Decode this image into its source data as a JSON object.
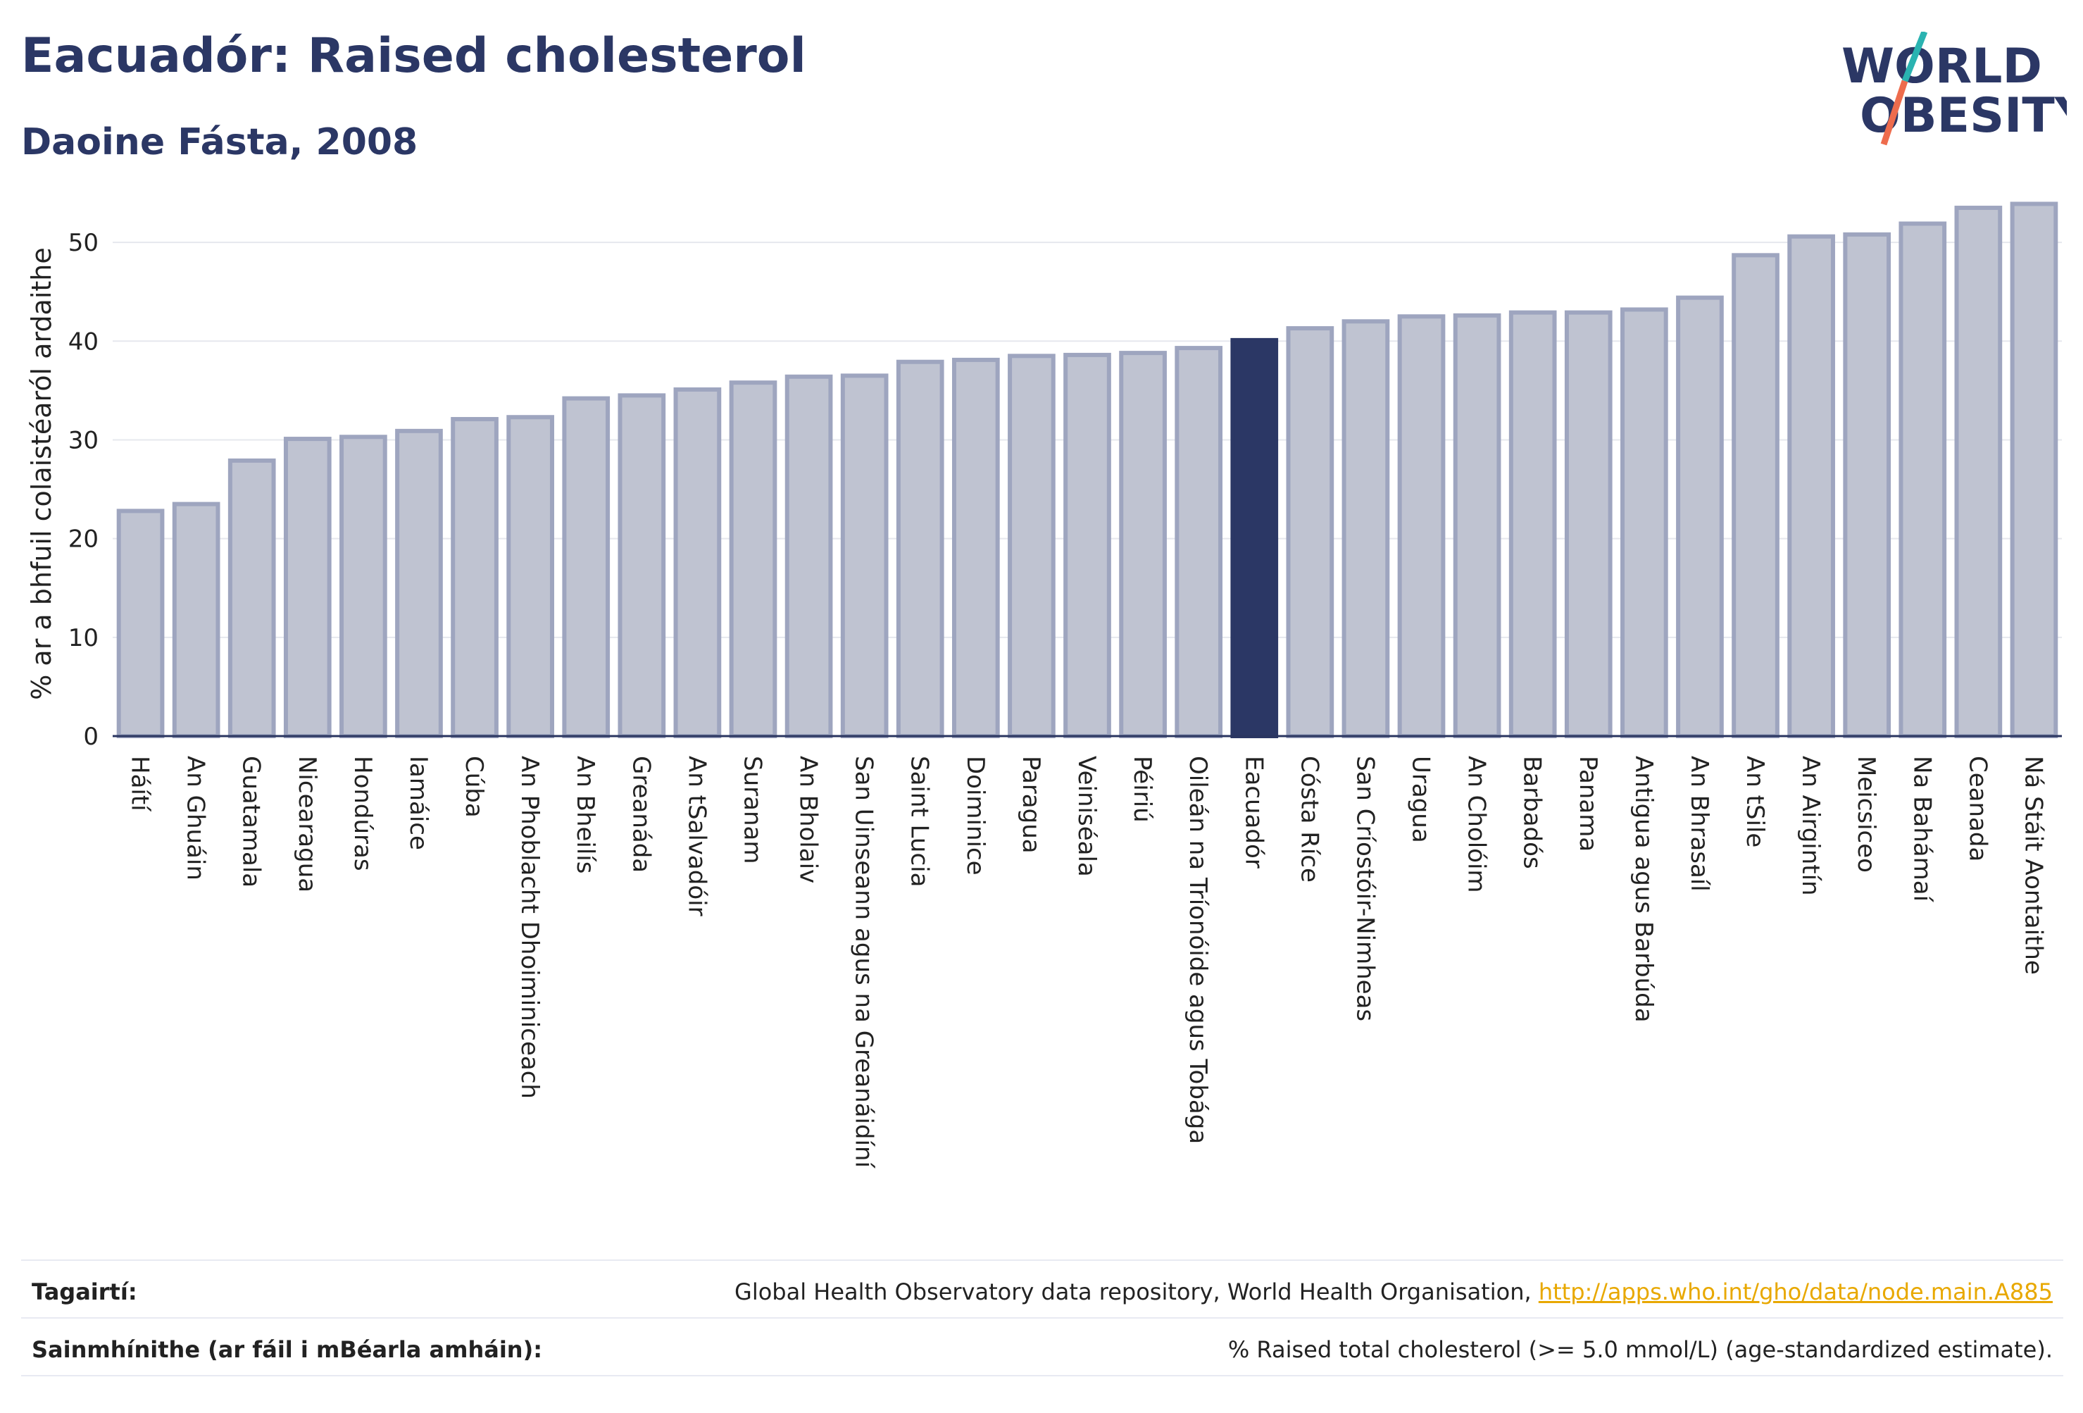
{
  "header": {
    "title": "Eacuadór: Raised cholesterol",
    "subtitle": "Daoine Fásta, 2008"
  },
  "logo": {
    "line1": "WORLD",
    "line2": "OBESITY",
    "colors": {
      "text": "#2b3765",
      "slash_top": "#2ab3b1",
      "slash_bottom": "#ee6c4d"
    }
  },
  "chart_data": {
    "type": "bar",
    "ylabel": "% ar a bhfuil colaistéaról ardaithe",
    "ylim": [
      0,
      56
    ],
    "yticks": [
      0,
      10,
      20,
      30,
      40,
      50
    ],
    "grid": true,
    "highlight": "Eacuadór",
    "colors": {
      "bar": "#bfc3d1",
      "bar_border": "#9ea5bf",
      "highlight": "#2b3765",
      "grid": "#e6e8ee",
      "axis": "#2a3560"
    },
    "categories": [
      "Háítí",
      "An Ghuáin",
      "Guatamala",
      "Nicearagua",
      "Hondúras",
      "Iamáice",
      "Cúba",
      "An Phoblacht Dhoiminiceach",
      "An Bheilís",
      "Greanáda",
      "An tSalvadóir",
      "Suranam",
      "An Bholaiv",
      "San Uinseann agus na Greanáidíní",
      "Saint Lucia",
      "Doiminice",
      "Paragua",
      "Veiniséala",
      "Péiriú",
      "Oileán na Tríonóide agus Tobága",
      "Eacuadór",
      "Cósta Ríce",
      "San Críostóir-Nimheas",
      "Uragua",
      "An Cholóim",
      "Barbadós",
      "Panama",
      "Antigua agus Barbúda",
      "An Bhrasaíl",
      "An tSile",
      "An Airgintín",
      "Meicsiceo",
      "Na Bahámaí",
      "Ceanada",
      "Ná Stáit Aontaithe"
    ],
    "values": [
      22.8,
      23.5,
      27.9,
      30.1,
      30.3,
      30.9,
      32.1,
      32.3,
      34.2,
      34.5,
      35.1,
      35.8,
      36.4,
      36.5,
      37.9,
      38.1,
      38.5,
      38.6,
      38.8,
      39.3,
      40.1,
      41.3,
      42.0,
      42.5,
      42.6,
      42.9,
      42.9,
      43.2,
      44.4,
      48.7,
      50.6,
      50.8,
      51.9,
      53.5,
      53.9
    ]
  },
  "footer": {
    "references_label": "Tagairtí:",
    "references_text": "Global Health Observatory data repository, World Health Organisation, ",
    "references_link": "http://apps.who.int/gho/data/node.main.A885",
    "definitions_label": "Sainmhínithe (ar fáil i mBéarla amháin):",
    "definitions_text": "% Raised total cholesterol (>= 5.0 mmol/L) (age-standardized estimate)."
  }
}
